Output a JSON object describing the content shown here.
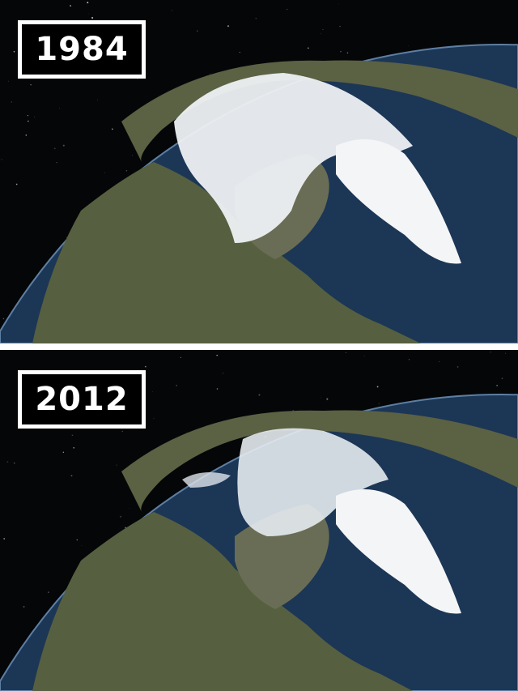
{
  "panels": [
    {
      "year": "1984",
      "ice_extent": "large"
    },
    {
      "year": "2012",
      "ice_extent": "reduced"
    }
  ],
  "colors": {
    "space": "#050608",
    "ocean": "#1c3656",
    "land": "#5b6143",
    "ice": "#eef1f4",
    "label_bg": "#000000",
    "label_border": "#ffffff"
  }
}
